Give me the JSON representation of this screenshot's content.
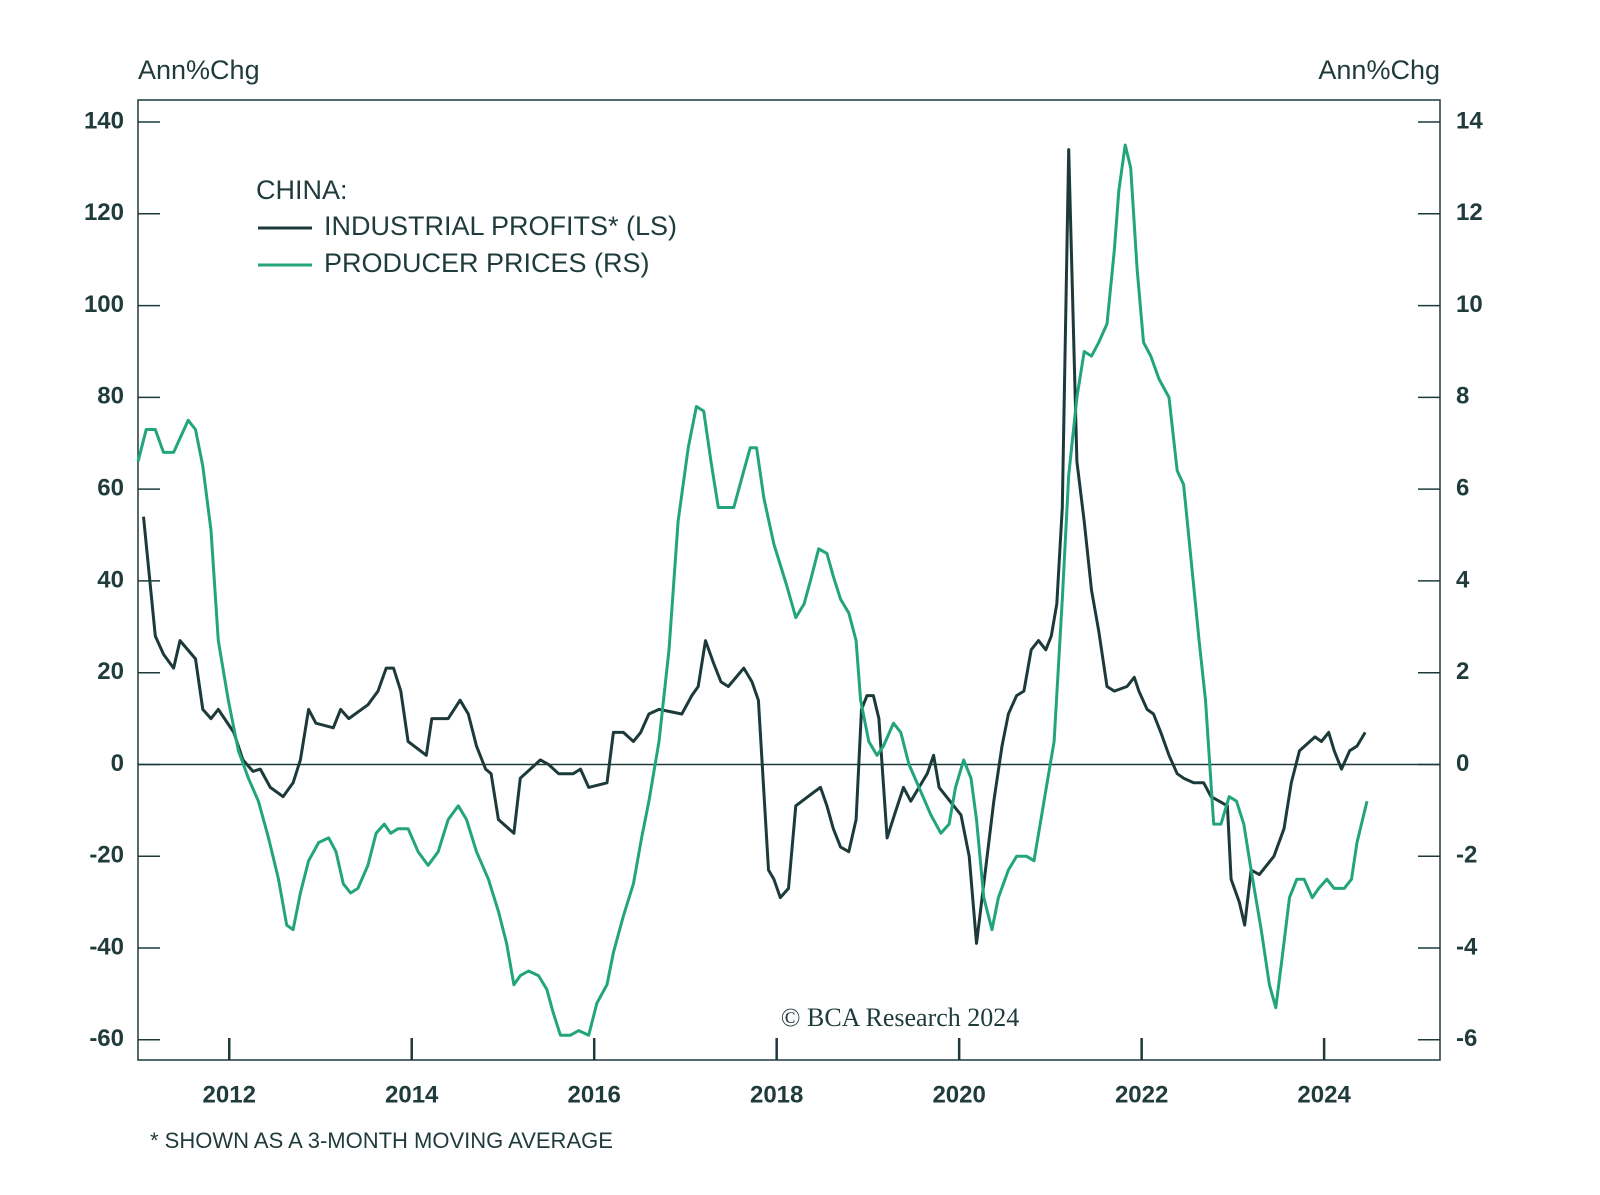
{
  "chart_data": {
    "type": "line",
    "ylabel": "Ann%Chg",
    "y2label": "Ann%Chg",
    "legend_title": "CHINA:",
    "annotation": "© BCA Research 2024",
    "footnote": "* SHOWN AS A 3-MONTH MOVING AVERAGE",
    "xlim": [
      2011.0,
      2025.27
    ],
    "xticks": [
      2012,
      2014,
      2016,
      2018,
      2020,
      2022,
      2024
    ],
    "ylim": [
      -64.4,
      144.8
    ],
    "yticks": [
      -60,
      -40,
      -20,
      0,
      20,
      40,
      60,
      80,
      100,
      120,
      140
    ],
    "y2lim": [
      -6.44,
      14.48
    ],
    "y2ticks": [
      -6,
      -4,
      -2,
      0,
      2,
      4,
      6,
      8,
      10,
      12,
      14
    ],
    "series": [
      {
        "name": "INDUSTRIAL PROFITS* (LS)",
        "color": "#1d3a3a",
        "axis": "y",
        "x": [
          2011.06,
          2011.19,
          2011.28,
          2011.39,
          2011.46,
          2011.63,
          2011.71,
          2011.8,
          2011.88,
          2012.05,
          2012.15,
          2012.26,
          2012.34,
          2012.45,
          2012.59,
          2012.7,
          2012.78,
          2012.87,
          2012.95,
          2013.14,
          2013.22,
          2013.31,
          2013.52,
          2013.63,
          2013.72,
          2013.8,
          2013.88,
          2013.96,
          2014.16,
          2014.22,
          2014.4,
          2014.53,
          2014.62,
          2014.71,
          2014.81,
          2014.87,
          2014.95,
          2015.12,
          2015.19,
          2015.3,
          2015.41,
          2015.5,
          2015.61,
          2015.77,
          2015.85,
          2015.94,
          2016.14,
          2016.21,
          2016.32,
          2016.43,
          2016.51,
          2016.6,
          2016.71,
          2016.96,
          2017.07,
          2017.14,
          2017.22,
          2017.31,
          2017.39,
          2017.47,
          2017.64,
          2017.73,
          2017.8,
          2017.91,
          2017.97,
          2018.04,
          2018.13,
          2018.21,
          2018.41,
          2018.48,
          2018.55,
          2018.62,
          2018.7,
          2018.79,
          2018.87,
          2018.93,
          2018.99,
          2019.06,
          2019.12,
          2019.21,
          2019.29,
          2019.39,
          2019.47,
          2019.56,
          2019.65,
          2019.72,
          2019.78,
          2019.94,
          2020.02,
          2020.11,
          2020.19,
          2020.27,
          2020.38,
          2020.47,
          2020.54,
          2020.63,
          2020.71,
          2020.79,
          2020.87,
          2020.95,
          2021.01,
          2021.07,
          2021.13,
          2021.2,
          2021.29,
          2021.37,
          2021.45,
          2021.53,
          2021.62,
          2021.7,
          2021.84,
          2021.92,
          2021.97,
          2022.06,
          2022.13,
          2022.21,
          2022.3,
          2022.39,
          2022.46,
          2022.57,
          2022.68,
          2022.76,
          2022.94,
          2022.98,
          2023.07,
          2023.13,
          2023.2,
          2023.29,
          2023.45,
          2023.56,
          2023.64,
          2023.73,
          2023.9,
          2023.97,
          2024.05,
          2024.11,
          2024.19,
          2024.28,
          2024.36,
          2024.45
        ],
        "values": [
          54,
          28,
          24,
          21,
          27,
          23,
          12,
          10,
          12,
          7,
          1,
          -1.5,
          -1,
          -5,
          -7,
          -4,
          1,
          12,
          9,
          8,
          12,
          10,
          13,
          16,
          21,
          21,
          16,
          5,
          2,
          10,
          10,
          14,
          11,
          4,
          -1,
          -2,
          -12,
          -15,
          -3,
          -1,
          1,
          0,
          -2,
          -2,
          -1,
          -5,
          -4,
          7,
          7,
          5,
          7,
          11,
          12,
          11,
          15,
          17,
          27,
          22,
          18,
          17,
          21,
          18,
          14,
          -23,
          -25,
          -29,
          -27,
          -9,
          -6,
          -5,
          -9,
          -14,
          -18,
          -19,
          -12,
          12,
          15,
          15,
          10,
          -16,
          -11,
          -5,
          -8,
          -5,
          -2,
          2,
          -5,
          -9,
          -11,
          -20,
          -39,
          -26,
          -8,
          4,
          11,
          15,
          16,
          25,
          27,
          25,
          28,
          35,
          56,
          134,
          66,
          53,
          38,
          29,
          17,
          16,
          17,
          19,
          16,
          12,
          11,
          7,
          2,
          -2,
          -3,
          -4,
          -4,
          -7,
          -9,
          -25,
          -30,
          -35,
          -23,
          -24,
          -20,
          -14,
          -4,
          3,
          6,
          5,
          7,
          3,
          -1,
          3,
          4,
          7
        ]
      },
      {
        "name": "PRODUCER PRICES (RS)",
        "color": "#22a57c",
        "axis": "y2",
        "x": [
          2011.0,
          2011.09,
          2011.19,
          2011.28,
          2011.39,
          2011.55,
          2011.63,
          2011.71,
          2011.8,
          2011.88,
          2011.99,
          2012.1,
          2012.21,
          2012.32,
          2012.43,
          2012.54,
          2012.63,
          2012.7,
          2012.78,
          2012.87,
          2012.98,
          2013.09,
          2013.17,
          2013.25,
          2013.33,
          2013.41,
          2013.52,
          2013.61,
          2013.7,
          2013.77,
          2013.85,
          2013.96,
          2014.07,
          2014.18,
          2014.29,
          2014.4,
          2014.51,
          2014.6,
          2014.71,
          2014.84,
          2014.95,
          2015.04,
          2015.12,
          2015.19,
          2015.28,
          2015.39,
          2015.48,
          2015.55,
          2015.63,
          2015.74,
          2015.83,
          2015.94,
          2016.03,
          2016.14,
          2016.21,
          2016.32,
          2016.43,
          2016.52,
          2016.6,
          2016.71,
          2016.82,
          2016.92,
          2017.03,
          2017.12,
          2017.2,
          2017.28,
          2017.36,
          2017.53,
          2017.64,
          2017.71,
          2017.78,
          2017.86,
          2017.97,
          2018.11,
          2018.21,
          2018.3,
          2018.37,
          2018.46,
          2018.55,
          2018.62,
          2018.7,
          2018.79,
          2018.87,
          2018.92,
          2019.01,
          2019.1,
          2019.17,
          2019.28,
          2019.36,
          2019.45,
          2019.56,
          2019.69,
          2019.8,
          2019.89,
          2019.96,
          2020.05,
          2020.13,
          2020.19,
          2020.27,
          2020.36,
          2020.43,
          2020.54,
          2020.63,
          2020.74,
          2020.82,
          2020.93,
          2021.04,
          2021.13,
          2021.2,
          2021.29,
          2021.37,
          2021.45,
          2021.53,
          2021.62,
          2021.7,
          2021.75,
          2021.82,
          2021.88,
          2021.95,
          2022.02,
          2022.1,
          2022.19,
          2022.3,
          2022.39,
          2022.46,
          2022.54,
          2022.63,
          2022.7,
          2022.79,
          2022.87,
          2022.96,
          2023.04,
          2023.12,
          2023.2,
          2023.31,
          2023.4,
          2023.47,
          2023.54,
          2023.62,
          2023.7,
          2023.78,
          2023.87,
          2023.94,
          2024.03,
          2024.11,
          2024.22,
          2024.3,
          2024.36,
          2024.47
        ],
        "values": [
          6.6,
          7.3,
          7.3,
          6.8,
          6.8,
          7.5,
          7.3,
          6.5,
          5.1,
          2.7,
          1.4,
          0.3,
          -0.3,
          -0.8,
          -1.6,
          -2.5,
          -3.5,
          -3.6,
          -2.8,
          -2.1,
          -1.7,
          -1.6,
          -1.9,
          -2.6,
          -2.8,
          -2.7,
          -2.2,
          -1.5,
          -1.3,
          -1.5,
          -1.4,
          -1.4,
          -1.9,
          -2.2,
          -1.9,
          -1.2,
          -0.9,
          -1.2,
          -1.9,
          -2.5,
          -3.2,
          -3.9,
          -4.8,
          -4.6,
          -4.5,
          -4.6,
          -4.9,
          -5.4,
          -5.9,
          -5.9,
          -5.8,
          -5.9,
          -5.2,
          -4.8,
          -4.1,
          -3.3,
          -2.6,
          -1.6,
          -0.8,
          0.5,
          2.5,
          5.3,
          6.9,
          7.8,
          7.7,
          6.6,
          5.6,
          5.6,
          6.4,
          6.9,
          6.9,
          5.8,
          4.8,
          3.9,
          3.2,
          3.5,
          4.0,
          4.7,
          4.6,
          4.1,
          3.6,
          3.3,
          2.7,
          1.4,
          0.5,
          0.2,
          0.4,
          0.9,
          0.7,
          0,
          -0.5,
          -1.1,
          -1.5,
          -1.3,
          -0.5,
          0.1,
          -0.3,
          -1.2,
          -2.9,
          -3.6,
          -2.9,
          -2.3,
          -2.0,
          -2.0,
          -2.1,
          -0.8,
          0.5,
          3.6,
          6.3,
          8.0,
          9.0,
          8.9,
          9.2,
          9.6,
          11.2,
          12.5,
          13.5,
          13.0,
          10.8,
          9.2,
          8.9,
          8.4,
          8.0,
          6.4,
          6.1,
          4.5,
          2.7,
          1.4,
          -1.3,
          -1.3,
          -0.7,
          -0.8,
          -1.3,
          -2.3,
          -3.6,
          -4.8,
          -5.3,
          -4.2,
          -2.9,
          -2.5,
          -2.5,
          -2.9,
          -2.7,
          -2.5,
          -2.7,
          -2.7,
          -2.5,
          -1.7,
          -0.8
        ]
      }
    ]
  }
}
